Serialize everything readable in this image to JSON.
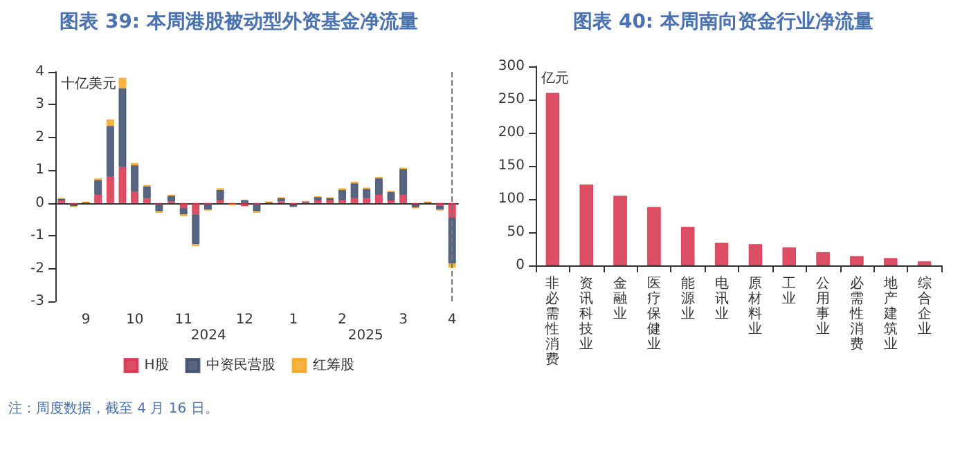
{
  "chart_data": [
    {
      "type": "bar",
      "title": "图表 39: 本周港股被动型外资基金净流量",
      "ylabel": "十亿美元",
      "stacked": true,
      "categories": [
        null,
        null,
        "9",
        null,
        null,
        null,
        "10",
        null,
        null,
        null,
        "11",
        null,
        null,
        null,
        null,
        "12",
        null,
        null,
        null,
        "1",
        null,
        null,
        null,
        "2",
        null,
        null,
        null,
        null,
        "3",
        null,
        null,
        null,
        "4"
      ],
      "series": [
        {
          "name": "H股",
          "color": "#d6304a",
          "values": [
            0.08,
            -0.03,
            0.02,
            0.25,
            0.8,
            1.1,
            0.35,
            0.15,
            -0.05,
            0.05,
            -0.15,
            -0.35,
            -0.05,
            0.1,
            -0.03,
            -0.1,
            -0.05,
            0.02,
            0.05,
            -0.03,
            0.03,
            0.08,
            0.1,
            0.1,
            0.15,
            0.15,
            0.25,
            0.08,
            0.25,
            -0.03,
            0.02,
            -0.08,
            -0.45
          ]
        },
        {
          "name": "中资民营股",
          "color": "#3b4a6b",
          "values": [
            0.05,
            -0.07,
            0,
            0.45,
            1.55,
            2.4,
            0.8,
            0.35,
            -0.2,
            0.17,
            -0.2,
            -0.9,
            -0.15,
            0.3,
            -0.02,
            0.08,
            -0.2,
            0.01,
            0.1,
            -0.08,
            0.02,
            0.1,
            0.05,
            0.3,
            0.45,
            0.28,
            0.5,
            0.25,
            0.78,
            -0.1,
            0.01,
            -0.12,
            -1.4
          ]
        },
        {
          "name": "红筹股",
          "color": "#f5a623",
          "values": [
            0.02,
            -0.02,
            0.01,
            0.05,
            0.2,
            0.32,
            0.07,
            0.05,
            -0.05,
            0.03,
            -0.05,
            -0.07,
            -0.03,
            0.05,
            0,
            0.02,
            -0.05,
            0,
            0.02,
            -0.02,
            0,
            0.02,
            0.02,
            0.05,
            0.05,
            0.04,
            0.05,
            0.04,
            0.05,
            -0.03,
            0,
            -0.03,
            -0.12
          ]
        }
      ],
      "ylim": [
        -3,
        4
      ],
      "yticks": [
        -3,
        -2,
        -1,
        0,
        1,
        2,
        3,
        4
      ],
      "grid": false,
      "legend": "bottom",
      "ref_lines": [
        {
          "axis": "x",
          "value": "4",
          "line_style": "dashed",
          "color": "#777777"
        }
      ],
      "annotations": [
        "2024",
        "2025",
        "注：周度数据，截至 4 月 16 日。"
      ]
    },
    {
      "type": "bar",
      "title": "图表 40: 本周南向资金行业净流量",
      "ylabel": "亿元",
      "categories": [
        "非必需性消费",
        "资讯科技业",
        "金融业",
        "医疗保健业",
        "能源业",
        "电讯业",
        "原材料业",
        "工业",
        "公用事业",
        "必需性消费",
        "地产建筑业",
        "综合企业"
      ],
      "values": [
        260,
        122,
        105,
        88,
        58,
        34,
        32,
        27,
        20,
        14,
        11,
        6
      ],
      "color": "#d6304a",
      "ylim": [
        0,
        300
      ],
      "yticks": [
        0,
        50,
        100,
        150,
        200,
        250,
        300
      ],
      "grid": false,
      "legend": false
    }
  ]
}
